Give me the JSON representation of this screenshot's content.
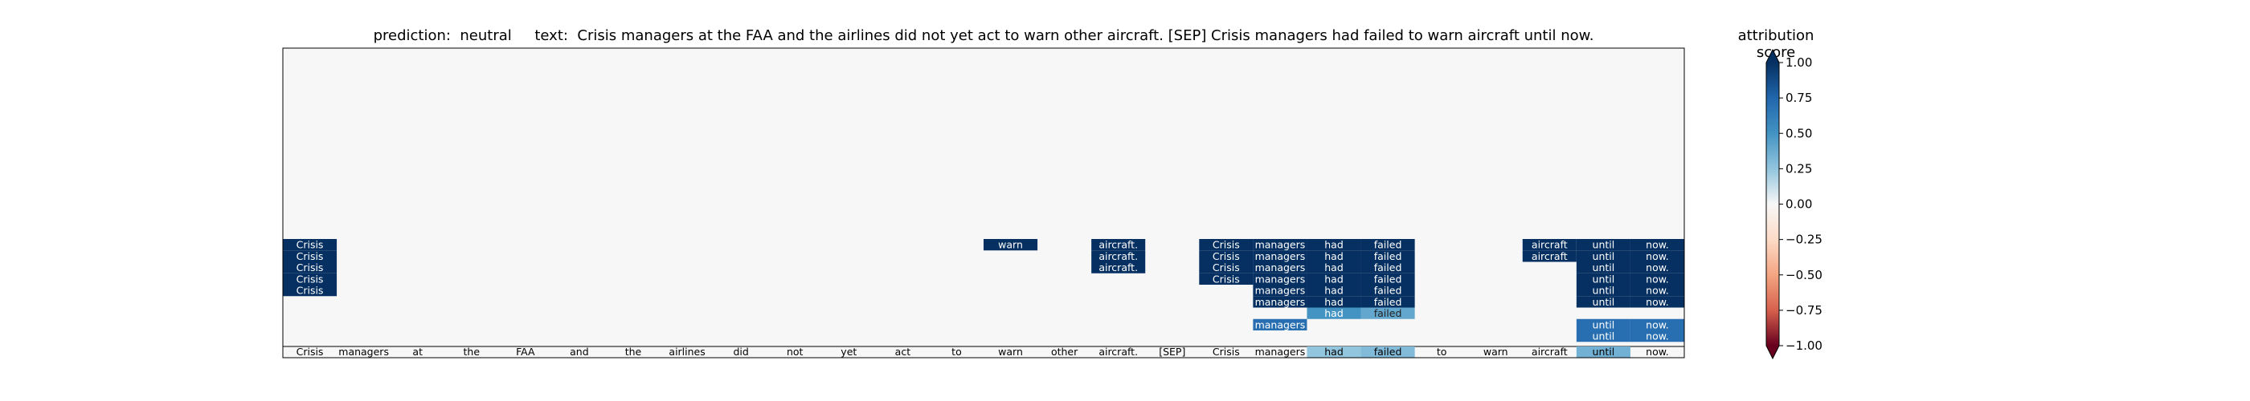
{
  "chart_data": {
    "type": "heatmap",
    "title": "prediction:  neutral     text:  Crisis managers at the FAA and the airlines did not yet act to warn other aircraft. [SEP] Crisis managers had failed to warn aircraft until now.",
    "tokens": [
      "Crisis",
      "managers",
      "at",
      "the",
      "FAA",
      "and",
      "the",
      "airlines",
      "did",
      "not",
      "yet",
      "act",
      "to",
      "warn",
      "other",
      "aircraft.",
      "[SEP]",
      "Crisis",
      "managers",
      "had",
      "failed",
      "to",
      "warn",
      "aircraft",
      "until",
      "now."
    ],
    "bottom_row_scores": [
      0,
      0,
      0,
      0,
      0,
      0,
      0,
      0,
      0,
      0,
      0,
      0,
      0,
      0,
      0,
      0,
      0,
      0,
      0,
      0.25,
      0.3,
      0,
      0,
      0,
      0.35,
      0
    ],
    "cells": [
      {
        "row": 0,
        "col": 0,
        "value": 1.0
      },
      {
        "row": 1,
        "col": 0,
        "value": 1.0
      },
      {
        "row": 2,
        "col": 0,
        "value": 1.0
      },
      {
        "row": 3,
        "col": 0,
        "value": 1.0
      },
      {
        "row": 4,
        "col": 0,
        "value": 1.0
      },
      {
        "row": 0,
        "col": 13,
        "value": 1.0
      },
      {
        "row": 0,
        "col": 15,
        "value": 1.0
      },
      {
        "row": 1,
        "col": 15,
        "value": 1.0
      },
      {
        "row": 2,
        "col": 15,
        "value": 1.0
      },
      {
        "row": 0,
        "col": 17,
        "value": 1.0
      },
      {
        "row": 1,
        "col": 17,
        "value": 1.0
      },
      {
        "row": 2,
        "col": 17,
        "value": 1.0
      },
      {
        "row": 3,
        "col": 17,
        "value": 1.0
      },
      {
        "row": 0,
        "col": 18,
        "value": 1.0
      },
      {
        "row": 1,
        "col": 18,
        "value": 1.0
      },
      {
        "row": 2,
        "col": 18,
        "value": 1.0
      },
      {
        "row": 3,
        "col": 18,
        "value": 1.0
      },
      {
        "row": 4,
        "col": 18,
        "value": 1.0
      },
      {
        "row": 5,
        "col": 18,
        "value": 1.0
      },
      {
        "row": 7,
        "col": 18,
        "value": 0.7
      },
      {
        "row": 0,
        "col": 19,
        "value": 1.0
      },
      {
        "row": 1,
        "col": 19,
        "value": 1.0
      },
      {
        "row": 2,
        "col": 19,
        "value": 1.0
      },
      {
        "row": 3,
        "col": 19,
        "value": 1.0
      },
      {
        "row": 4,
        "col": 19,
        "value": 1.0
      },
      {
        "row": 5,
        "col": 19,
        "value": 1.0
      },
      {
        "row": 6,
        "col": 19,
        "value": 0.5
      },
      {
        "row": 0,
        "col": 20,
        "value": 1.0
      },
      {
        "row": 1,
        "col": 20,
        "value": 1.0
      },
      {
        "row": 2,
        "col": 20,
        "value": 1.0
      },
      {
        "row": 3,
        "col": 20,
        "value": 1.0
      },
      {
        "row": 4,
        "col": 20,
        "value": 1.0
      },
      {
        "row": 5,
        "col": 20,
        "value": 1.0
      },
      {
        "row": 6,
        "col": 20,
        "value": 0.4
      },
      {
        "row": 0,
        "col": 23,
        "value": 1.0
      },
      {
        "row": 1,
        "col": 23,
        "value": 1.0
      },
      {
        "row": 0,
        "col": 24,
        "value": 1.0
      },
      {
        "row": 1,
        "col": 24,
        "value": 1.0
      },
      {
        "row": 2,
        "col": 24,
        "value": 1.0
      },
      {
        "row": 3,
        "col": 24,
        "value": 1.0
      },
      {
        "row": 4,
        "col": 24,
        "value": 1.0
      },
      {
        "row": 5,
        "col": 24,
        "value": 1.0
      },
      {
        "row": 7,
        "col": 24,
        "value": 0.7
      },
      {
        "row": 8,
        "col": 24,
        "value": 0.7
      },
      {
        "row": 0,
        "col": 25,
        "value": 1.0
      },
      {
        "row": 1,
        "col": 25,
        "value": 1.0
      },
      {
        "row": 2,
        "col": 25,
        "value": 1.0
      },
      {
        "row": 3,
        "col": 25,
        "value": 1.0
      },
      {
        "row": 4,
        "col": 25,
        "value": 1.0
      },
      {
        "row": 5,
        "col": 25,
        "value": 1.0
      },
      {
        "row": 7,
        "col": 25,
        "value": 0.7
      },
      {
        "row": 8,
        "col": 25,
        "value": 0.7
      }
    ],
    "colorbar": {
      "label": "attribution score",
      "ticks": [
        "1.00",
        "0.75",
        "0.50",
        "0.25",
        "0.00",
        "−0.25",
        "−0.50",
        "−0.75",
        "−1.00"
      ],
      "tick_values": [
        1.0,
        0.75,
        0.5,
        0.25,
        0.0,
        -0.25,
        -0.5,
        -0.75,
        -1.0
      ],
      "vmin": -1.0,
      "vmax": 1.0,
      "colormap": "RdBu",
      "extend": "both"
    }
  },
  "colors": {
    "positive_strong": "#0d3f75",
    "background": "#f7f7f7",
    "negative_strong": "#8b0a23",
    "frame": "#000000"
  }
}
